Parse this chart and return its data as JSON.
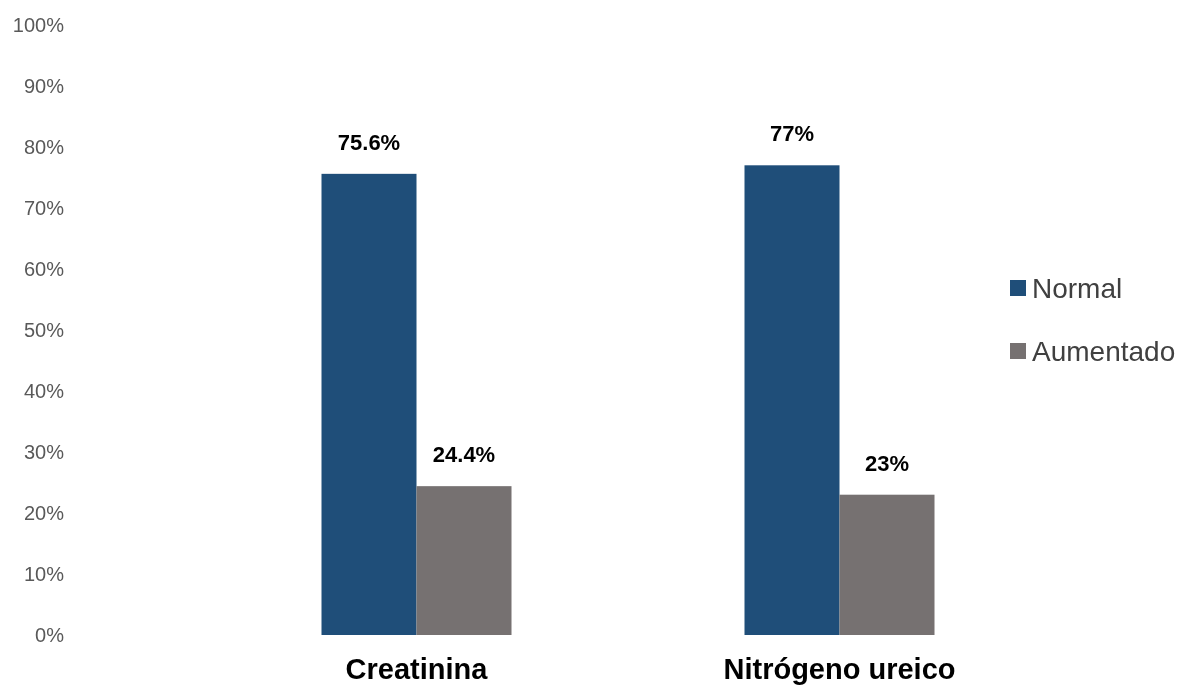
{
  "chart_data": {
    "type": "bar",
    "categories": [
      "Creatinina",
      "Nitrógeno ureico"
    ],
    "series": [
      {
        "name": "Normal",
        "color": "#1f4e79",
        "values": [
          75.6,
          77
        ],
        "value_labels": [
          "75.6%",
          "77%"
        ]
      },
      {
        "name": "Aumentado",
        "color": "#767171",
        "values": [
          24.4,
          23
        ],
        "value_labels": [
          "24.4%",
          "23%"
        ]
      }
    ],
    "ylim": [
      0,
      100
    ],
    "yticks": [
      {
        "value": 0,
        "label": "0%"
      },
      {
        "value": 10,
        "label": "10%"
      },
      {
        "value": 20,
        "label": "20%"
      },
      {
        "value": 30,
        "label": "30%"
      },
      {
        "value": 40,
        "label": "40%"
      },
      {
        "value": 50,
        "label": "50%"
      },
      {
        "value": 60,
        "label": "60%"
      },
      {
        "value": 70,
        "label": "70%"
      },
      {
        "value": 80,
        "label": "80%"
      },
      {
        "value": 90,
        "label": "90%"
      },
      {
        "value": 100,
        "label": "100%"
      }
    ],
    "grid": false,
    "legend": "right"
  }
}
